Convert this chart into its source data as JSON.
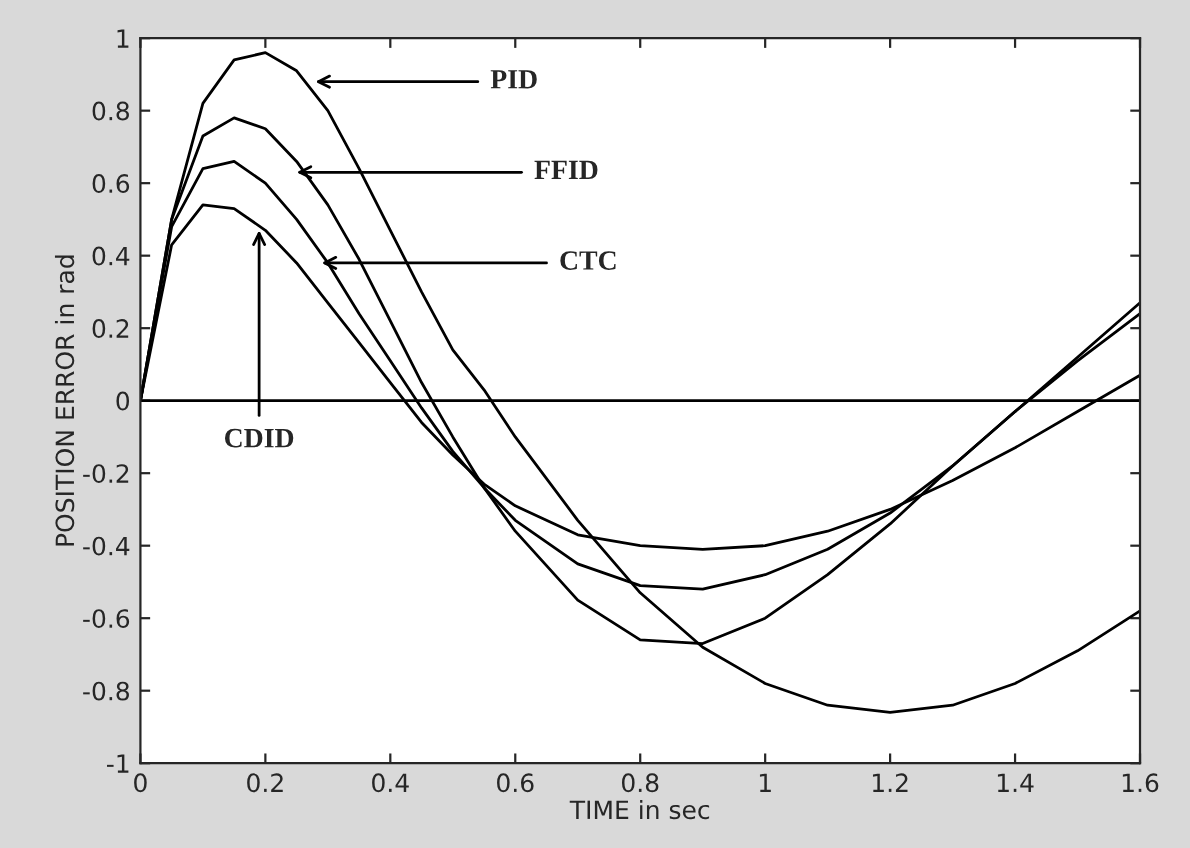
{
  "chart_data": {
    "type": "line",
    "xlabel": "TIME in sec",
    "ylabel": "POSITION ERROR in rad",
    "x": [
      0,
      0.05,
      0.1,
      0.15,
      0.2,
      0.25,
      0.3,
      0.35,
      0.4,
      0.45,
      0.5,
      0.55,
      0.6,
      0.7,
      0.8,
      0.9,
      1.0,
      1.1,
      1.2,
      1.3,
      1.4,
      1.5,
      1.6
    ],
    "series": [
      {
        "color": "#000000",
        "values": [
          0,
          0.5,
          0.82,
          0.94,
          0.96,
          0.91,
          0.8,
          0.64,
          0.47,
          0.3,
          0.14,
          0.03,
          -0.1,
          -0.33,
          -0.53,
          -0.68,
          -0.78,
          -0.84,
          -0.86,
          -0.84,
          -0.78,
          -0.69,
          -0.58
        ]
      },
      {
        "color": "#000000",
        "values": [
          0,
          0.5,
          0.73,
          0.78,
          0.75,
          0.66,
          0.54,
          0.39,
          0.22,
          0.05,
          -0.1,
          -0.24,
          -0.36,
          -0.55,
          -0.66,
          -0.67,
          -0.6,
          -0.48,
          -0.34,
          -0.18,
          -0.03,
          0.12,
          0.27
        ]
      },
      {
        "color": "#000000",
        "values": [
          0,
          0.48,
          0.64,
          0.66,
          0.6,
          0.5,
          0.38,
          0.24,
          0.11,
          -0.02,
          -0.14,
          -0.24,
          -0.33,
          -0.45,
          -0.51,
          -0.52,
          -0.48,
          -0.41,
          -0.31,
          -0.18,
          -0.03,
          0.11,
          0.24
        ]
      },
      {
        "color": "#000000",
        "values": [
          0,
          0.43,
          0.54,
          0.53,
          0.47,
          0.38,
          0.27,
          0.16,
          0.05,
          -0.06,
          -0.15,
          -0.23,
          -0.29,
          -0.37,
          -0.4,
          -0.41,
          -0.4,
          -0.36,
          -0.3,
          -0.22,
          -0.13,
          -0.03,
          0.07
        ]
      }
    ],
    "annotations": [
      {
        "text": "PID",
        "x": 0.28,
        "y": 0.88
      },
      {
        "text": "FFID",
        "x": 0.25,
        "y": 0.63
      },
      {
        "text": "CTC",
        "x": 0.29,
        "y": 0.38
      },
      {
        "text": "CDID",
        "x": 0.19,
        "y": 0.47
      }
    ],
    "ref_lines": [
      {
        "axis": "y",
        "value": 0,
        "color": "#000000"
      }
    ],
    "xlim": [
      0,
      1.6
    ],
    "ylim": [
      -1,
      1
    ],
    "xticks": [
      0,
      0.2,
      0.4,
      0.6,
      0.8,
      1,
      1.2,
      1.4,
      1.6
    ],
    "yticks": [
      -1,
      -0.8,
      -0.6,
      -0.4,
      -0.2,
      0,
      0.2,
      0.4,
      0.6,
      0.8,
      1
    ],
    "grid": false,
    "legend": false,
    "line_style": "solid",
    "marker": "none"
  }
}
